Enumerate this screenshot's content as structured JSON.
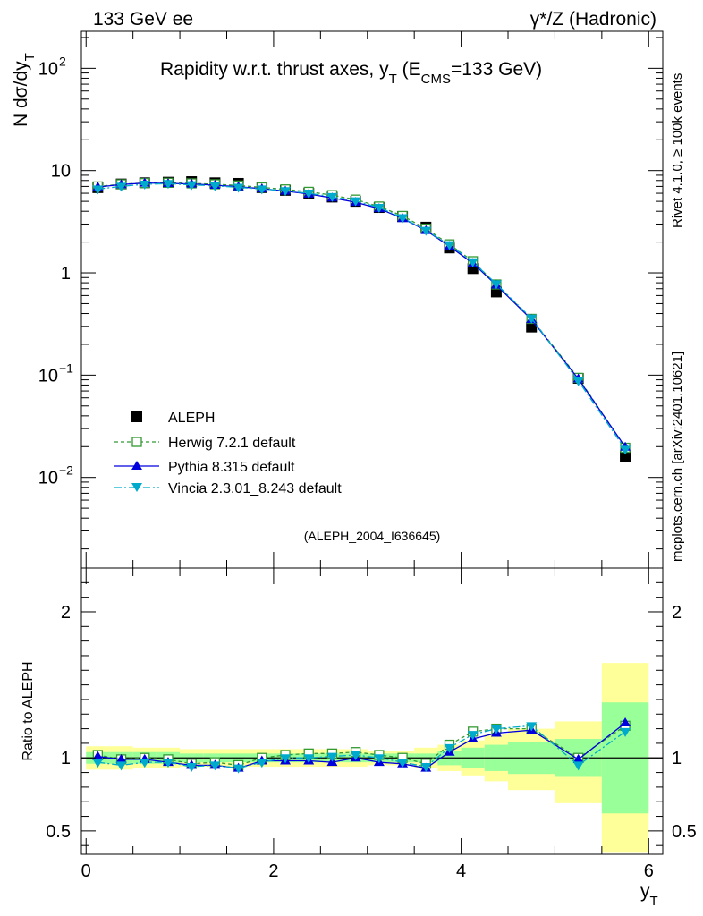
{
  "header": {
    "left": "133 GeV ee",
    "right": "γ*/Z (Hadronic)"
  },
  "side_text": {
    "rivet": "Rivet 4.1.0, ≥ 100k events",
    "mcplots": "mcplots.cern.ch [arXiv:2401.10621]"
  },
  "colors": {
    "data": "#000000",
    "herwig": "#339933",
    "pythia": "#0000dd",
    "vincia": "#00aacc",
    "band_inner": "#99ff99",
    "band_outer": "#ffff99",
    "tag_text": "#999999"
  },
  "chart_data": [
    {
      "type": "line",
      "name": "main",
      "title_parts": {
        "pre": "Rapidity w.r.t. thrust axes, y",
        "sub1": "T",
        "mid": " (E",
        "sub2": "CMS",
        "post": "=133 GeV)"
      },
      "ylabel_parts": {
        "main": "N  dσ/dy",
        "sub": "T"
      },
      "yscale": "log",
      "ylim": [
        0.0013,
        230
      ],
      "xlim": [
        -0.05,
        6.15
      ],
      "yticks": [
        {
          "v": 100,
          "base": "10",
          "exp": "2",
          "plain": ""
        },
        {
          "v": 10,
          "base": "",
          "exp": "",
          "plain": "10"
        },
        {
          "v": 1,
          "base": "",
          "exp": "",
          "plain": "1"
        },
        {
          "v": 0.1,
          "base": "10",
          "exp": "−1",
          "plain": ""
        },
        {
          "v": 0.01,
          "base": "10",
          "exp": "−2",
          "plain": ""
        }
      ],
      "analysis_tag": "(ALEPH_2004_I636645)",
      "legend_position": "lower-left",
      "x": [
        0.125,
        0.375,
        0.625,
        0.875,
        1.125,
        1.375,
        1.625,
        1.875,
        2.125,
        2.375,
        2.625,
        2.875,
        3.125,
        3.375,
        3.625,
        3.875,
        4.125,
        4.375,
        4.75,
        5.25,
        5.75
      ],
      "series": [
        {
          "name": "ALEPH",
          "marker": "square-filled",
          "values": [
            6.8,
            7.4,
            7.6,
            7.7,
            7.8,
            7.6,
            7.5,
            6.8,
            6.4,
            6.0,
            5.5,
            5.0,
            4.35,
            3.55,
            2.8,
            1.75,
            1.1,
            0.65,
            0.295,
            0.093,
            0.016
          ]
        },
        {
          "name": "Herwig 7.2.1 default",
          "marker": "square-open",
          "values": [
            7.0,
            7.35,
            7.55,
            7.6,
            7.5,
            7.35,
            7.15,
            6.85,
            6.55,
            6.2,
            5.75,
            5.2,
            4.45,
            3.6,
            2.7,
            1.9,
            1.3,
            0.77,
            0.355,
            0.094,
            0.0195
          ]
        },
        {
          "name": "Pythia 8.315 default",
          "marker": "triangle-up",
          "values": [
            6.9,
            7.3,
            7.55,
            7.5,
            7.4,
            7.2,
            6.95,
            6.65,
            6.3,
            5.9,
            5.4,
            4.9,
            4.25,
            3.4,
            2.6,
            1.82,
            1.24,
            0.76,
            0.35,
            0.092,
            0.0198
          ]
        },
        {
          "name": "Vincia 2.3.01_8.243 default",
          "marker": "triangle-down",
          "values": [
            6.6,
            7.0,
            7.35,
            7.45,
            7.25,
            7.1,
            6.85,
            6.6,
            6.35,
            6.0,
            5.55,
            5.05,
            4.35,
            3.45,
            2.6,
            1.88,
            1.28,
            0.78,
            0.36,
            0.088,
            0.0188
          ]
        }
      ]
    },
    {
      "type": "line",
      "name": "ratio",
      "ylabel": "Ratio to ALEPH",
      "xlabel_parts": {
        "main": "y",
        "sub": "T"
      },
      "ylim": [
        0.34,
        2.3
      ],
      "xlim": [
        -0.05,
        6.15
      ],
      "xticks": [
        0,
        2,
        4,
        6
      ],
      "yticks": [
        0.5,
        1,
        2
      ],
      "x": [
        0.125,
        0.375,
        0.625,
        0.875,
        1.125,
        1.375,
        1.625,
        1.875,
        2.125,
        2.375,
        2.625,
        2.875,
        3.125,
        3.375,
        3.625,
        3.875,
        4.125,
        4.375,
        4.75,
        5.25,
        5.75
      ],
      "bins": [
        {
          "x0": 0.0,
          "x1": 0.25,
          "inner": [
            0.96,
            1.04
          ],
          "outer": [
            0.92,
            1.08
          ]
        },
        {
          "x0": 0.25,
          "x1": 0.5,
          "inner": [
            0.96,
            1.04
          ],
          "outer": [
            0.92,
            1.08
          ]
        },
        {
          "x0": 0.5,
          "x1": 0.75,
          "inner": [
            0.96,
            1.04
          ],
          "outer": [
            0.93,
            1.07
          ]
        },
        {
          "x0": 0.75,
          "x1": 1.0,
          "inner": [
            0.96,
            1.04
          ],
          "outer": [
            0.93,
            1.07
          ]
        },
        {
          "x0": 1.0,
          "x1": 1.25,
          "inner": [
            0.97,
            1.03
          ],
          "outer": [
            0.94,
            1.06
          ]
        },
        {
          "x0": 1.25,
          "x1": 1.5,
          "inner": [
            0.97,
            1.03
          ],
          "outer": [
            0.94,
            1.06
          ]
        },
        {
          "x0": 1.5,
          "x1": 1.75,
          "inner": [
            0.97,
            1.03
          ],
          "outer": [
            0.94,
            1.06
          ]
        },
        {
          "x0": 1.75,
          "x1": 2.0,
          "inner": [
            0.97,
            1.03
          ],
          "outer": [
            0.94,
            1.06
          ]
        },
        {
          "x0": 2.0,
          "x1": 2.25,
          "inner": [
            0.97,
            1.03
          ],
          "outer": [
            0.94,
            1.06
          ]
        },
        {
          "x0": 2.25,
          "x1": 2.5,
          "inner": [
            0.97,
            1.03
          ],
          "outer": [
            0.94,
            1.06
          ]
        },
        {
          "x0": 2.5,
          "x1": 2.75,
          "inner": [
            0.97,
            1.03
          ],
          "outer": [
            0.94,
            1.06
          ]
        },
        {
          "x0": 2.75,
          "x1": 3.0,
          "inner": [
            0.97,
            1.03
          ],
          "outer": [
            0.94,
            1.06
          ]
        },
        {
          "x0": 3.0,
          "x1": 3.25,
          "inner": [
            0.97,
            1.03
          ],
          "outer": [
            0.95,
            1.05
          ]
        },
        {
          "x0": 3.25,
          "x1": 3.5,
          "inner": [
            0.97,
            1.03
          ],
          "outer": [
            0.95,
            1.05
          ]
        },
        {
          "x0": 3.5,
          "x1": 3.75,
          "inner": [
            0.97,
            1.03
          ],
          "outer": [
            0.93,
            1.07
          ]
        },
        {
          "x0": 3.75,
          "x1": 4.0,
          "inner": [
            0.95,
            1.05
          ],
          "outer": [
            0.91,
            1.09
          ]
        },
        {
          "x0": 4.0,
          "x1": 4.25,
          "inner": [
            0.93,
            1.07
          ],
          "outer": [
            0.88,
            1.12
          ]
        },
        {
          "x0": 4.25,
          "x1": 4.5,
          "inner": [
            0.91,
            1.09
          ],
          "outer": [
            0.84,
            1.16
          ]
        },
        {
          "x0": 4.5,
          "x1": 5.0,
          "inner": [
            0.89,
            1.11
          ],
          "outer": [
            0.78,
            1.2
          ]
        },
        {
          "x0": 5.0,
          "x1": 5.5,
          "inner": [
            0.87,
            1.13
          ],
          "outer": [
            0.69,
            1.25
          ]
        },
        {
          "x0": 5.5,
          "x1": 6.0,
          "inner": [
            0.62,
            1.38
          ],
          "outer": [
            0.35,
            1.65
          ]
        }
      ],
      "series": [
        {
          "name": "Herwig 7.2.1 default",
          "marker": "square-open",
          "values": [
            1.02,
            0.99,
            1.0,
            0.99,
            0.96,
            0.97,
            0.95,
            1.0,
            1.02,
            1.03,
            1.03,
            1.04,
            1.02,
            1.0,
            0.96,
            1.09,
            1.18,
            1.2,
            1.2,
            1.0,
            1.22
          ]
        },
        {
          "name": "Pythia 8.315 default",
          "marker": "triangle-up",
          "values": [
            1.01,
            0.99,
            0.99,
            0.97,
            0.95,
            0.95,
            0.93,
            0.98,
            0.98,
            0.98,
            0.97,
            1.0,
            0.97,
            0.96,
            0.93,
            1.04,
            1.13,
            1.17,
            1.19,
            0.99,
            1.24
          ]
        },
        {
          "name": "Vincia 2.3.01_8.243 default",
          "marker": "triangle-down",
          "values": [
            0.97,
            0.95,
            0.97,
            0.97,
            0.94,
            0.95,
            0.93,
            0.97,
            1.0,
            1.0,
            1.01,
            1.02,
            1.0,
            0.97,
            0.94,
            1.07,
            1.16,
            1.2,
            1.22,
            0.95,
            1.18
          ]
        }
      ]
    }
  ]
}
